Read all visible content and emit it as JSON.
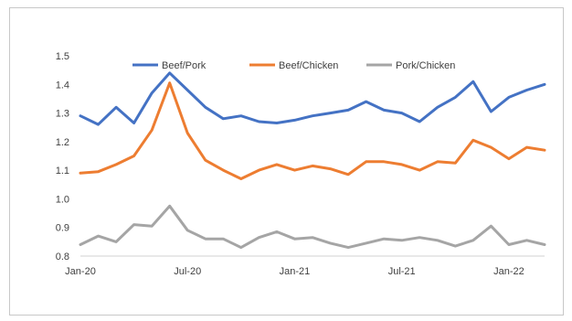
{
  "chart_data": {
    "type": "line",
    "title": "",
    "xlabel": "",
    "ylabel": "",
    "ylim": [
      0.8,
      1.5
    ],
    "yticks": [
      "0.8",
      "0.9",
      "1.0",
      "1.1",
      "1.2",
      "1.3",
      "1.4",
      "1.5"
    ],
    "xtick_labels": [
      "Jan-20",
      "Jul-20",
      "Jan-21",
      "Jul-21",
      "Jan-22"
    ],
    "x": [
      "Jan-20",
      "Feb-20",
      "Mar-20",
      "Apr-20",
      "May-20",
      "Jun-20",
      "Jul-20",
      "Aug-20",
      "Sep-20",
      "Oct-20",
      "Nov-20",
      "Dec-20",
      "Jan-21",
      "Feb-21",
      "Mar-21",
      "Apr-21",
      "May-21",
      "Jun-21",
      "Jul-21",
      "Aug-21",
      "Sep-21",
      "Oct-21",
      "Nov-21",
      "Dec-21",
      "Jan-22",
      "Feb-22",
      "Mar-22"
    ],
    "grid": false,
    "legend_position": "top",
    "series": [
      {
        "name": "Beef/Pork",
        "color": "#4472C4",
        "values": [
          1.29,
          1.26,
          1.32,
          1.265,
          1.37,
          1.44,
          1.38,
          1.32,
          1.28,
          1.29,
          1.27,
          1.265,
          1.275,
          1.29,
          1.3,
          1.31,
          1.34,
          1.31,
          1.3,
          1.27,
          1.32,
          1.355,
          1.41,
          1.305,
          1.355,
          1.38,
          1.4
        ]
      },
      {
        "name": "Beef/Chicken",
        "color": "#ED7D31",
        "values": [
          1.09,
          1.095,
          1.12,
          1.15,
          1.24,
          1.405,
          1.23,
          1.135,
          1.1,
          1.07,
          1.1,
          1.12,
          1.1,
          1.115,
          1.105,
          1.085,
          1.13,
          1.13,
          1.12,
          1.1,
          1.13,
          1.125,
          1.205,
          1.18,
          1.14,
          1.18,
          1.17
        ]
      },
      {
        "name": "Pork/Chicken",
        "color": "#A5A5A5",
        "values": [
          0.84,
          0.87,
          0.85,
          0.91,
          0.905,
          0.975,
          0.89,
          0.86,
          0.86,
          0.83,
          0.865,
          0.885,
          0.86,
          0.865,
          0.845,
          0.83,
          0.845,
          0.86,
          0.855,
          0.865,
          0.855,
          0.835,
          0.855,
          0.905,
          0.84,
          0.855,
          0.84
        ]
      }
    ]
  }
}
